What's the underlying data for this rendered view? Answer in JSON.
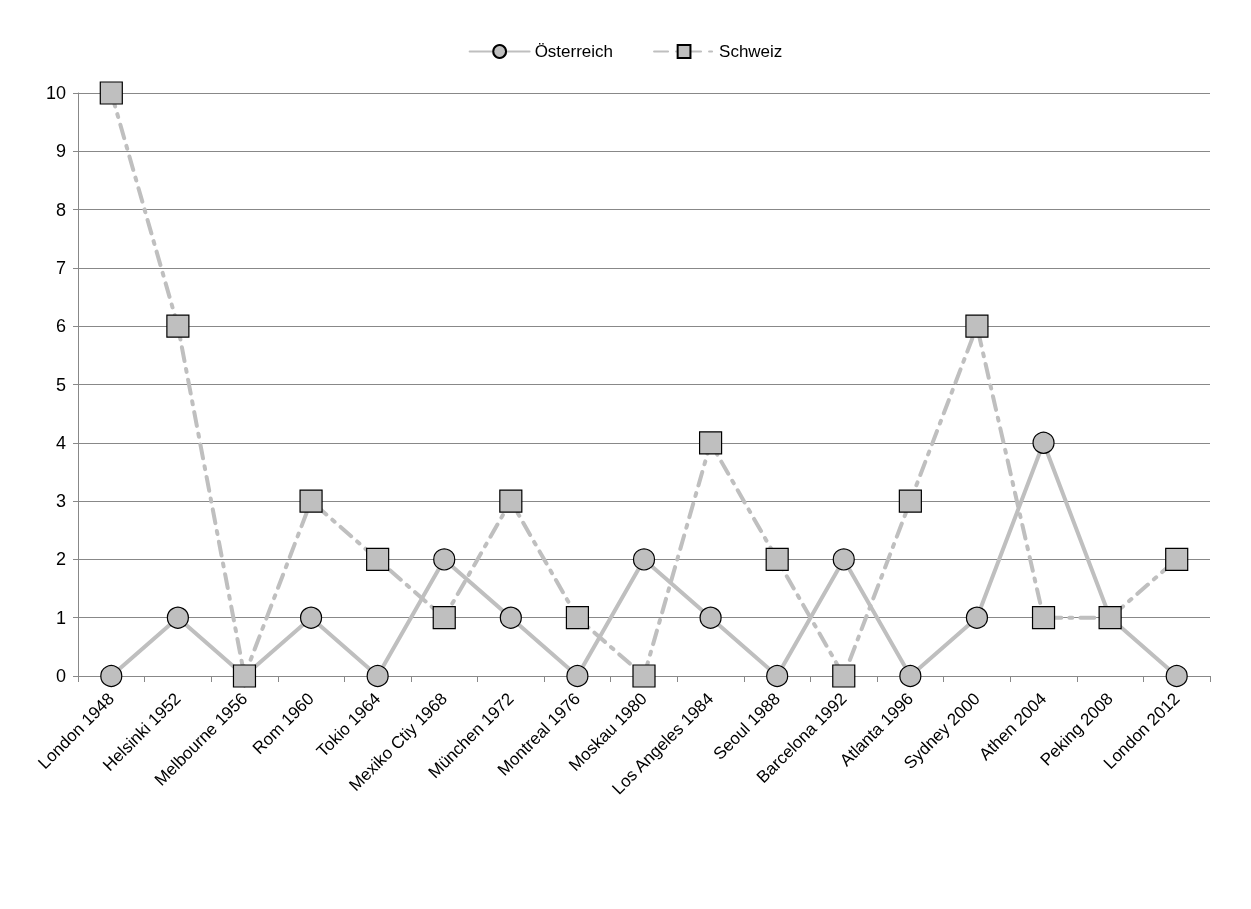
{
  "chart_data": {
    "type": "line",
    "categories": [
      "London 1948",
      "Helsinki 1952",
      "Melbourne 1956",
      "Rom 1960",
      "Tokio 1964",
      "Mexiko Ctiy 1968",
      "München 1972",
      "Montreal 1976",
      "Moskau 1980",
      "Los Angeles 1984",
      "Seoul 1988",
      "Barcelona 1992",
      "Atlanta 1996",
      "Sydney 2000",
      "Athen 2004",
      "Peking 2008",
      "London 2012"
    ],
    "series": [
      {
        "name": "Österreich",
        "color": "#bfbfbf",
        "marker": "circle",
        "line_style": "solid",
        "values": [
          0,
          1,
          0,
          1,
          0,
          2,
          1,
          0,
          2,
          1,
          0,
          2,
          0,
          1,
          4,
          1,
          0
        ]
      },
      {
        "name": "Schweiz",
        "color": "#bfbfbf",
        "marker": "square",
        "line_style": "dashed",
        "values": [
          10,
          6,
          0,
          3,
          2,
          1,
          3,
          1,
          0,
          4,
          2,
          0,
          3,
          6,
          1,
          1,
          2
        ]
      }
    ],
    "ylim": [
      0,
      10
    ],
    "yticks": [
      0,
      1,
      2,
      3,
      4,
      5,
      6,
      7,
      8,
      9,
      10
    ],
    "grid": "y",
    "legend": "top"
  }
}
